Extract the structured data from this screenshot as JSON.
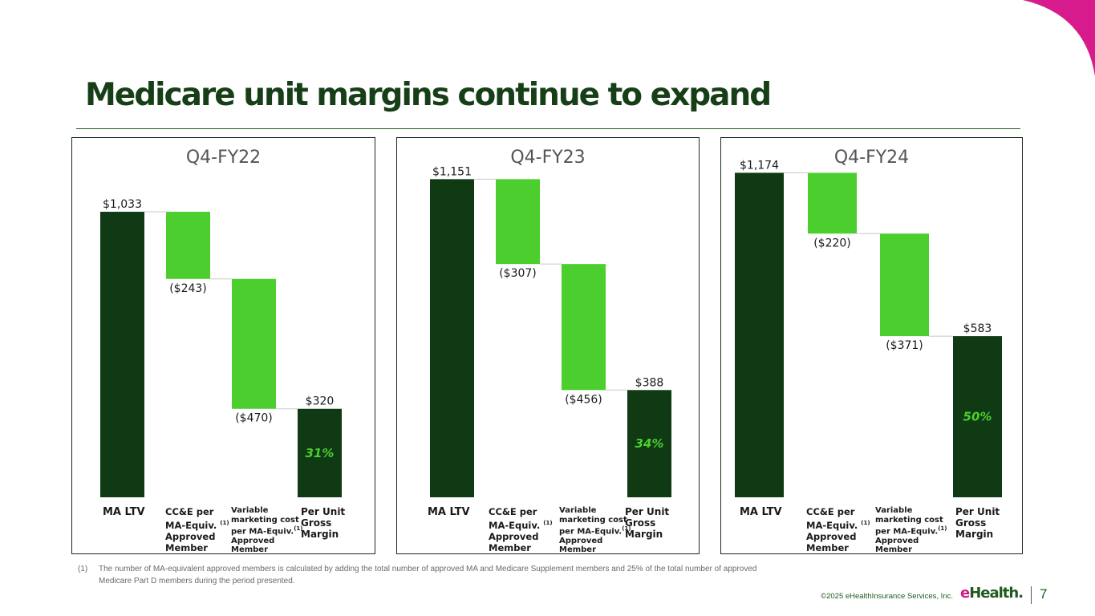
{
  "title": "Medicare unit margins continue to expand",
  "colors": {
    "dark_green": "#0f3a14",
    "light_green": "#4cce2e",
    "title_green": "#173f17",
    "accent_pink": "#d81b8c"
  },
  "categories": [
    {
      "label": "MA LTV"
    },
    {
      "line1": "CC&E per",
      "line2": "MA-Equiv.",
      "sup": "(1)",
      "line3": "Approved",
      "line4": "Member"
    },
    {
      "line1": "Variable",
      "line2": "marketing cost",
      "line3": "per MA-Equiv.",
      "sup": "(1)",
      "line4": "Approved",
      "line5": "Member"
    },
    {
      "line1": "Per Unit",
      "line2": "Gross",
      "line3": "Margin"
    }
  ],
  "chart_data": [
    {
      "type": "bar",
      "subtype": "waterfall",
      "title": "Q4-FY22",
      "categories": [
        "MA LTV",
        "CC&E per MA-Equiv. Approved Member",
        "Variable marketing cost per MA-Equiv. Approved Member",
        "Per Unit Gross Margin"
      ],
      "values": [
        1033,
        -243,
        -470,
        320
      ],
      "value_labels": [
        "$1,033",
        "($243)",
        "($470)",
        "$320"
      ],
      "margin_label": "31%",
      "margin_percent": 31
    },
    {
      "type": "bar",
      "subtype": "waterfall",
      "title": "Q4-FY23",
      "categories": [
        "MA LTV",
        "CC&E per MA-Equiv. Approved Member",
        "Variable marketing cost per MA-Equiv. Approved Member",
        "Per Unit Gross Margin"
      ],
      "values": [
        1151,
        -307,
        -456,
        388
      ],
      "value_labels": [
        "$1,151",
        "($307)",
        "($456)",
        "$388"
      ],
      "margin_label": "34%",
      "margin_percent": 34
    },
    {
      "type": "bar",
      "subtype": "waterfall",
      "title": "Q4-FY24",
      "categories": [
        "MA LTV",
        "CC&E per MA-Equiv. Approved Member",
        "Variable marketing cost per MA-Equiv. Approved Member",
        "Per Unit Gross Margin"
      ],
      "values": [
        1174,
        -220,
        -371,
        583
      ],
      "value_labels": [
        "$1,174",
        "($220)",
        "($371)",
        "$583"
      ],
      "margin_label": "50%",
      "margin_percent": 50
    }
  ],
  "footnote": {
    "number": "(1)",
    "text": "The number of MA-equivalent approved members is calculated by adding the total number of approved MA and Medicare Supplement members and 25% of the total number of approved Medicare Part D members during the period presented."
  },
  "copyright": "©2025 eHealthInsurance Services, Inc.",
  "logo": {
    "e": "e",
    "rest": "Health."
  },
  "page_number": "7"
}
